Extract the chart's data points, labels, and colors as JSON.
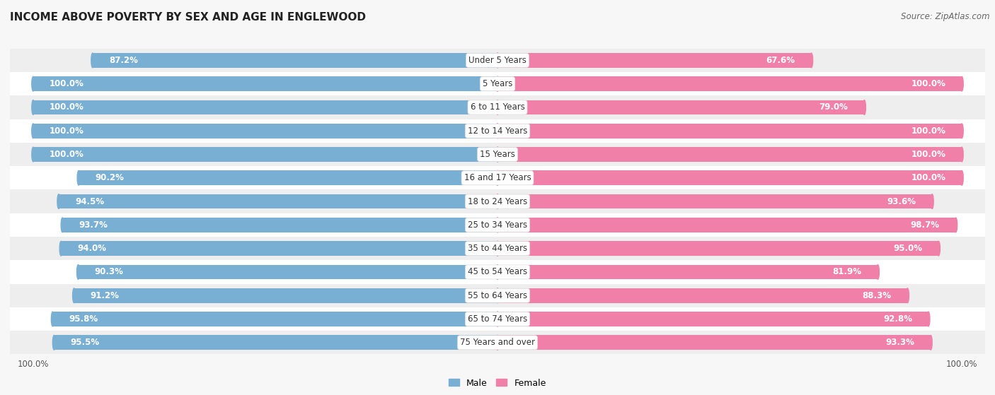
{
  "title": "INCOME ABOVE POVERTY BY SEX AND AGE IN ENGLEWOOD",
  "source": "Source: ZipAtlas.com",
  "categories": [
    "Under 5 Years",
    "5 Years",
    "6 to 11 Years",
    "12 to 14 Years",
    "15 Years",
    "16 and 17 Years",
    "18 to 24 Years",
    "25 to 34 Years",
    "35 to 44 Years",
    "45 to 54 Years",
    "55 to 64 Years",
    "65 to 74 Years",
    "75 Years and over"
  ],
  "male_values": [
    87.2,
    100.0,
    100.0,
    100.0,
    100.0,
    90.2,
    94.5,
    93.7,
    94.0,
    90.3,
    91.2,
    95.8,
    95.5
  ],
  "female_values": [
    67.6,
    100.0,
    79.0,
    100.0,
    100.0,
    100.0,
    93.6,
    98.7,
    95.0,
    81.9,
    88.3,
    92.8,
    93.3
  ],
  "male_color": "#7aafd4",
  "female_color": "#f080a8",
  "male_light": "#b8d4eb",
  "female_light": "#f8b8cc",
  "bg_color": "#f7f7f7",
  "row_color_odd": "#ffffff",
  "row_color_even": "#eeeeee",
  "title_fontsize": 11,
  "label_fontsize": 8.5,
  "value_fontsize": 8.5,
  "legend_fontsize": 9,
  "source_fontsize": 8.5,
  "max_val": 100.0
}
